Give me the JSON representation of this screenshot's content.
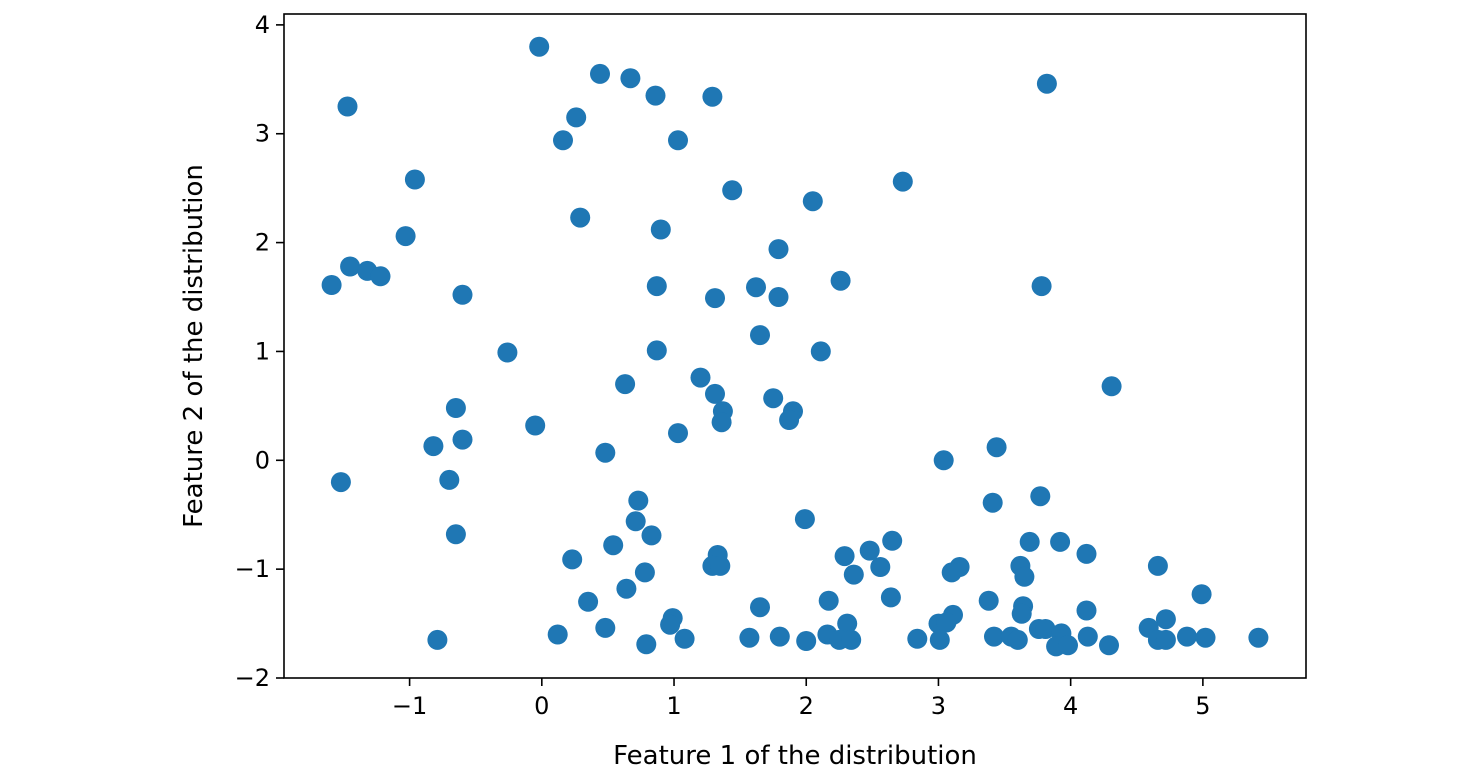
{
  "chart_data": {
    "type": "scatter",
    "title": "",
    "xlabel": "Feature 1 of the distribution",
    "ylabel": "Feature 2 of the distribution",
    "xlim": [
      -1.95,
      5.78
    ],
    "ylim": [
      -2.0,
      4.1
    ],
    "xticks": [
      -1,
      0,
      1,
      2,
      3,
      4,
      5
    ],
    "yticks": [
      -2,
      -1,
      0,
      1,
      2,
      3,
      4
    ],
    "xtick_labels": [
      "−1",
      "0",
      "1",
      "2",
      "3",
      "4",
      "5"
    ],
    "ytick_labels": [
      "−2",
      "−1",
      "0",
      "1",
      "2",
      "3",
      "4"
    ],
    "grid": false,
    "legend": "none",
    "marker_color": "#1f77b4",
    "series": [
      {
        "points": [
          [
            -0.02,
            3.8
          ],
          [
            0.44,
            3.55
          ],
          [
            0.67,
            3.51
          ],
          [
            0.86,
            3.35
          ],
          [
            1.29,
            3.34
          ],
          [
            3.82,
            3.46
          ],
          [
            -1.47,
            3.25
          ],
          [
            0.26,
            3.15
          ],
          [
            0.16,
            2.94
          ],
          [
            1.03,
            2.94
          ],
          [
            -0.96,
            2.58
          ],
          [
            2.73,
            2.56
          ],
          [
            1.44,
            2.48
          ],
          [
            2.05,
            2.38
          ],
          [
            0.29,
            2.23
          ],
          [
            0.9,
            2.12
          ],
          [
            -1.03,
            2.06
          ],
          [
            1.79,
            1.94
          ],
          [
            -1.45,
            1.78
          ],
          [
            -1.32,
            1.74
          ],
          [
            -1.22,
            1.69
          ],
          [
            2.26,
            1.65
          ],
          [
            -1.59,
            1.61
          ],
          [
            0.87,
            1.6
          ],
          [
            1.62,
            1.59
          ],
          [
            3.78,
            1.6
          ],
          [
            -0.6,
            1.52
          ],
          [
            1.79,
            1.5
          ],
          [
            1.31,
            1.49
          ],
          [
            1.65,
            1.15
          ],
          [
            -0.26,
            0.99
          ],
          [
            0.87,
            1.01
          ],
          [
            2.11,
            1.0
          ],
          [
            1.2,
            0.76
          ],
          [
            0.63,
            0.7
          ],
          [
            4.31,
            0.68
          ],
          [
            1.31,
            0.61
          ],
          [
            1.75,
            0.57
          ],
          [
            -0.65,
            0.48
          ],
          [
            1.37,
            0.45
          ],
          [
            1.9,
            0.45
          ],
          [
            1.87,
            0.37
          ],
          [
            1.36,
            0.35
          ],
          [
            -0.05,
            0.32
          ],
          [
            1.03,
            0.25
          ],
          [
            -0.6,
            0.19
          ],
          [
            -0.82,
            0.13
          ],
          [
            3.44,
            0.12
          ],
          [
            0.48,
            0.07
          ],
          [
            3.04,
            0.0
          ],
          [
            -1.52,
            -0.2
          ],
          [
            -0.7,
            -0.18
          ],
          [
            3.77,
            -0.33
          ],
          [
            0.73,
            -0.37
          ],
          [
            3.41,
            -0.39
          ],
          [
            1.99,
            -0.54
          ],
          [
            0.71,
            -0.56
          ],
          [
            -0.65,
            -0.68
          ],
          [
            0.83,
            -0.69
          ],
          [
            2.65,
            -0.74
          ],
          [
            3.69,
            -0.75
          ],
          [
            3.92,
            -0.75
          ],
          [
            0.54,
            -0.78
          ],
          [
            2.48,
            -0.83
          ],
          [
            4.12,
            -0.86
          ],
          [
            1.33,
            -0.87
          ],
          [
            2.29,
            -0.88
          ],
          [
            0.23,
            -0.91
          ],
          [
            1.29,
            -0.97
          ],
          [
            1.35,
            -0.97
          ],
          [
            3.62,
            -0.97
          ],
          [
            4.66,
            -0.97
          ],
          [
            2.56,
            -0.98
          ],
          [
            3.16,
            -0.98
          ],
          [
            0.78,
            -1.03
          ],
          [
            3.1,
            -1.03
          ],
          [
            2.36,
            -1.05
          ],
          [
            3.65,
            -1.07
          ],
          [
            0.64,
            -1.18
          ],
          [
            4.99,
            -1.23
          ],
          [
            2.64,
            -1.26
          ],
          [
            0.35,
            -1.3
          ],
          [
            2.17,
            -1.29
          ],
          [
            3.38,
            -1.29
          ],
          [
            1.65,
            -1.35
          ],
          [
            3.64,
            -1.34
          ],
          [
            4.12,
            -1.38
          ],
          [
            3.63,
            -1.41
          ],
          [
            3.11,
            -1.42
          ],
          [
            0.99,
            -1.45
          ],
          [
            4.72,
            -1.46
          ],
          [
            2.31,
            -1.5
          ],
          [
            3.0,
            -1.5
          ],
          [
            3.06,
            -1.49
          ],
          [
            0.97,
            -1.51
          ],
          [
            4.59,
            -1.54
          ],
          [
            0.48,
            -1.54
          ],
          [
            3.76,
            -1.55
          ],
          [
            3.81,
            -1.55
          ],
          [
            3.93,
            -1.59
          ],
          [
            0.12,
            -1.6
          ],
          [
            2.16,
            -1.6
          ],
          [
            1.57,
            -1.63
          ],
          [
            1.8,
            -1.62
          ],
          [
            3.42,
            -1.62
          ],
          [
            3.55,
            -1.62
          ],
          [
            4.13,
            -1.62
          ],
          [
            4.88,
            -1.62
          ],
          [
            5.02,
            -1.63
          ],
          [
            5.42,
            -1.63
          ],
          [
            -0.79,
            -1.65
          ],
          [
            1.08,
            -1.64
          ],
          [
            2.84,
            -1.64
          ],
          [
            3.01,
            -1.65
          ],
          [
            3.6,
            -1.65
          ],
          [
            4.66,
            -1.65
          ],
          [
            4.72,
            -1.65
          ],
          [
            2.25,
            -1.65
          ],
          [
            2.34,
            -1.65
          ],
          [
            2.0,
            -1.66
          ],
          [
            0.79,
            -1.69
          ],
          [
            3.89,
            -1.71
          ],
          [
            3.98,
            -1.7
          ],
          [
            4.29,
            -1.7
          ]
        ]
      }
    ]
  }
}
